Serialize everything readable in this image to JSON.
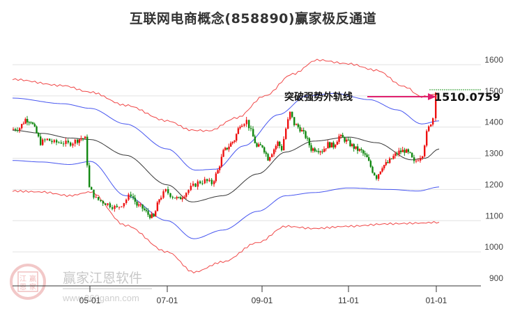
{
  "title": "互联网电商概念(858890)赢家极反通道",
  "chart_data": {
    "type": "candlestick-channel",
    "title": "互联网电商概念(858890)赢家极反通道",
    "xlabel": "",
    "ylabel": "",
    "ylim": [
      900,
      1650
    ],
    "grid": true,
    "y_ticks": [
      1600,
      1500,
      1400,
      1300,
      1200,
      1100,
      1000,
      900
    ],
    "x_ticks": [
      "05-01",
      "07-01",
      "09-01",
      "11-01",
      "01-01"
    ],
    "annotation": {
      "text": "突破强势外轨线",
      "value_label": "1510.0759",
      "arrow_color": "#e0206e"
    },
    "last_value": 1510.0759,
    "series": [
      {
        "name": "outer upper band",
        "color": "#ee3333",
        "points_approx": [
          [
            18,
            1553
          ],
          [
            90,
            1533
          ],
          [
            130,
            1512
          ],
          [
            180,
            1470
          ],
          [
            240,
            1420
          ],
          [
            275,
            1390
          ],
          [
            300,
            1388
          ],
          [
            340,
            1430
          ],
          [
            380,
            1500
          ],
          [
            420,
            1570
          ],
          [
            455,
            1615
          ],
          [
            500,
            1603
          ],
          [
            540,
            1582
          ],
          [
            580,
            1530
          ],
          [
            605,
            1497
          ],
          [
            630,
            1507
          ]
        ]
      },
      {
        "name": "inner upper band",
        "color": "#3344ee",
        "points_approx": [
          [
            18,
            1493
          ],
          [
            90,
            1475
          ],
          [
            130,
            1460
          ],
          [
            180,
            1410
          ],
          [
            240,
            1330
          ],
          [
            280,
            1262
          ],
          [
            310,
            1265
          ],
          [
            350,
            1340
          ],
          [
            400,
            1440
          ],
          [
            440,
            1500
          ],
          [
            480,
            1508
          ],
          [
            530,
            1488
          ],
          [
            570,
            1455
          ],
          [
            605,
            1410
          ],
          [
            630,
            1420
          ]
        ]
      },
      {
        "name": "middle line",
        "color": "#222222",
        "points_approx": [
          [
            18,
            1390
          ],
          [
            60,
            1380
          ],
          [
            100,
            1365
          ],
          [
            130,
            1360
          ],
          [
            180,
            1310
          ],
          [
            240,
            1215
          ],
          [
            275,
            1160
          ],
          [
            320,
            1180
          ],
          [
            370,
            1250
          ],
          [
            410,
            1320
          ],
          [
            450,
            1355
          ],
          [
            500,
            1368
          ],
          [
            540,
            1350
          ],
          [
            590,
            1295
          ],
          [
            610,
            1300
          ],
          [
            630,
            1330
          ]
        ]
      },
      {
        "name": "inner lower band",
        "color": "#3344ee",
        "points_approx": [
          [
            18,
            1293
          ],
          [
            60,
            1288
          ],
          [
            100,
            1280
          ],
          [
            130,
            1290
          ],
          [
            180,
            1180
          ],
          [
            240,
            1100
          ],
          [
            278,
            1042
          ],
          [
            320,
            1070
          ],
          [
            370,
            1130
          ],
          [
            410,
            1180
          ],
          [
            450,
            1190
          ],
          [
            500,
            1205
          ],
          [
            560,
            1200
          ],
          [
            600,
            1195
          ],
          [
            630,
            1208
          ]
        ]
      },
      {
        "name": "outer lower band",
        "color": "#ee3333",
        "points_approx": [
          [
            18,
            1195
          ],
          [
            60,
            1192
          ],
          [
            100,
            1180
          ],
          [
            130,
            1192
          ],
          [
            180,
            1085
          ],
          [
            240,
            1000
          ],
          [
            278,
            935
          ],
          [
            320,
            968
          ],
          [
            370,
            1030
          ],
          [
            410,
            1082
          ],
          [
            450,
            1075
          ],
          [
            500,
            1082
          ],
          [
            560,
            1090
          ],
          [
            600,
            1092
          ],
          [
            630,
            1095
          ]
        ]
      }
    ]
  },
  "watermark": {
    "name": "赢家江恩软件",
    "url": "www.360gann.com",
    "seal_chars": [
      "江",
      "赢",
      "恩",
      "家"
    ]
  }
}
